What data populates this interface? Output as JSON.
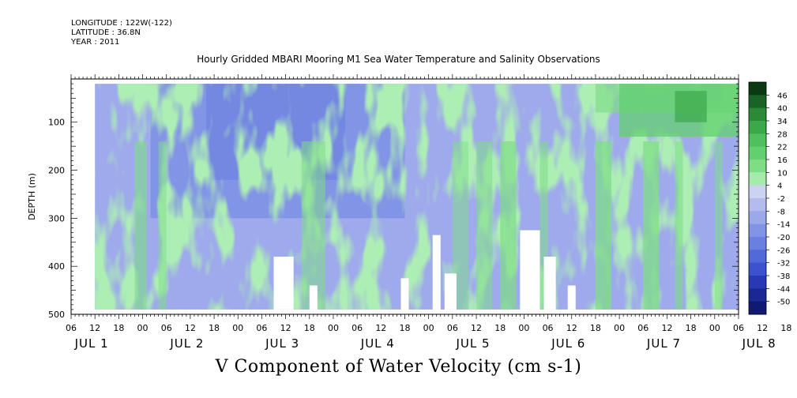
{
  "header": {
    "longitude": "LONGITUDE : 122W(-122)",
    "latitude": "LATITUDE : 36.8N",
    "year": "YEAR : 2011"
  },
  "chart_data": {
    "type": "heatmap",
    "title": "Hourly Gridded MBARI Mooring M1 Sea Water Temperature and Salinity Observations",
    "xlabel": "V Component of Water Velocity (cm s-1)",
    "ylabel": "DEPTH (m)",
    "xlim_hours_from_jul1_00": [
      6,
      174
    ],
    "data_xlim_hours_from_jul1_00": [
      12,
      174
    ],
    "ylim": [
      500,
      10
    ],
    "data_ylim": [
      20,
      490
    ],
    "y_ticks": [
      100,
      200,
      300,
      400,
      500
    ],
    "x_hour_ticks": [
      "06",
      "12",
      "18",
      "00",
      "06",
      "12",
      "18",
      "00",
      "06",
      "12",
      "18",
      "00",
      "06",
      "12",
      "18",
      "00",
      "06",
      "12",
      "18",
      "00",
      "06",
      "12",
      "18",
      "00",
      "06",
      "12",
      "18",
      "00",
      "06",
      "12",
      "18",
      "00"
    ],
    "x_day_labels": [
      "JUL 1",
      "JUL 2",
      "JUL 3",
      "JUL 4",
      "JUL 5",
      "JUL 6",
      "JUL 7",
      "JUL 8"
    ],
    "colorbar": {
      "levels": [
        "46",
        "40",
        "34",
        "28",
        "22",
        "16",
        "10",
        "4",
        "-2",
        "-8",
        "-14",
        "-20",
        "-26",
        "-32",
        "-38",
        "-44",
        "-50"
      ],
      "bands": [
        "#0b3a12",
        "#1a6326",
        "#2b8a38",
        "#3ba84a",
        "#4ec05c",
        "#62d06e",
        "#7fdd87",
        "#a7ebac",
        "#ccd2f2",
        "#b4bcee",
        "#9ba8ea",
        "#8294e6",
        "#6a80e0",
        "#5269d8",
        "#3c52cf",
        "#2839b4",
        "#1a2896",
        "#101a72"
      ]
    },
    "values_text": "V component of water velocity (cm s-1) on an hourly time x depth grid; field shown by colour only.",
    "blank_gaps": [
      {
        "start_h": 57,
        "end_h": 62,
        "top_m": 380,
        "bottom_m": 490
      },
      {
        "start_h": 66,
        "end_h": 68,
        "top_m": 440,
        "bottom_m": 490
      },
      {
        "start_h": 89,
        "end_h": 91,
        "top_m": 425,
        "bottom_m": 490
      },
      {
        "start_h": 97,
        "end_h": 99,
        "top_m": 335,
        "bottom_m": 490
      },
      {
        "start_h": 100,
        "end_h": 103,
        "top_m": 415,
        "bottom_m": 490
      },
      {
        "start_h": 119,
        "end_h": 124,
        "top_m": 325,
        "bottom_m": 490
      },
      {
        "start_h": 125,
        "end_h": 128,
        "top_m": 380,
        "bottom_m": 490
      },
      {
        "start_h": 131,
        "end_h": 133,
        "top_m": 440,
        "bottom_m": 490
      }
    ]
  }
}
